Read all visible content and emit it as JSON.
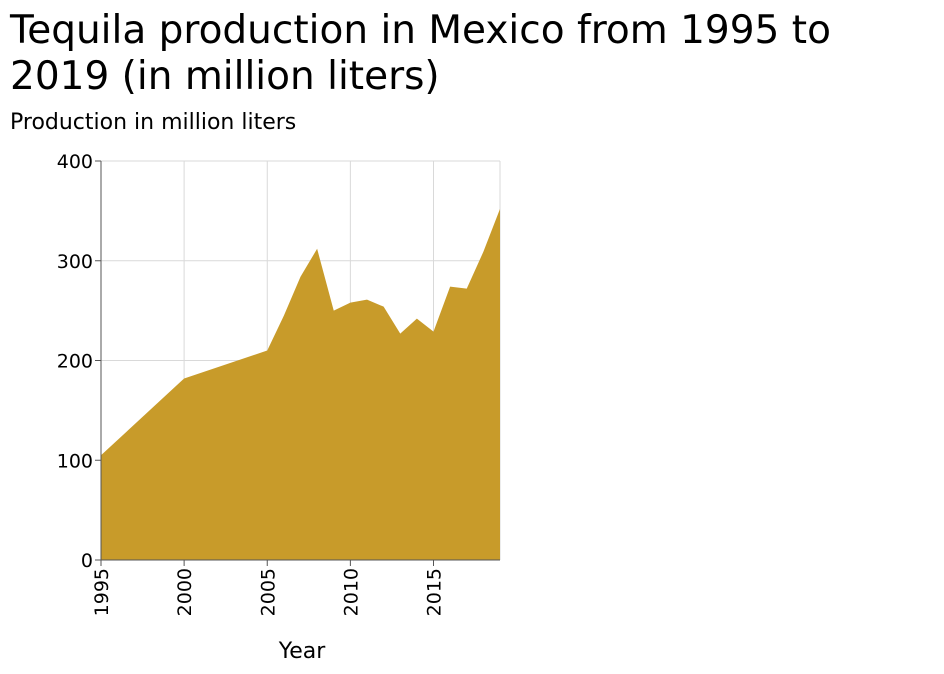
{
  "chart_data": {
    "type": "area",
    "title": "Tequila production in Mexico from 1995 to 2019 (in million liters)",
    "xlabel": "Year",
    "ylabel": "Production in million liters",
    "xlim": [
      1995,
      2019
    ],
    "ylim": [
      0,
      400
    ],
    "x_ticks": [
      1995,
      2000,
      2005,
      2010,
      2015
    ],
    "y_ticks": [
      0,
      100,
      200,
      300,
      400
    ],
    "grid": true,
    "legend": "none",
    "color": "#c89b2a",
    "series": [
      {
        "x": [
          1995,
          2000,
          2005,
          2006,
          2007,
          2008,
          2009,
          2010,
          2011,
          2012,
          2013,
          2014,
          2015,
          2016,
          2017,
          2018,
          2019
        ],
        "values": [
          105,
          182,
          210,
          245,
          284,
          312,
          250,
          258,
          261,
          254,
          227,
          242,
          229,
          274,
          272,
          309,
          352
        ]
      }
    ]
  }
}
